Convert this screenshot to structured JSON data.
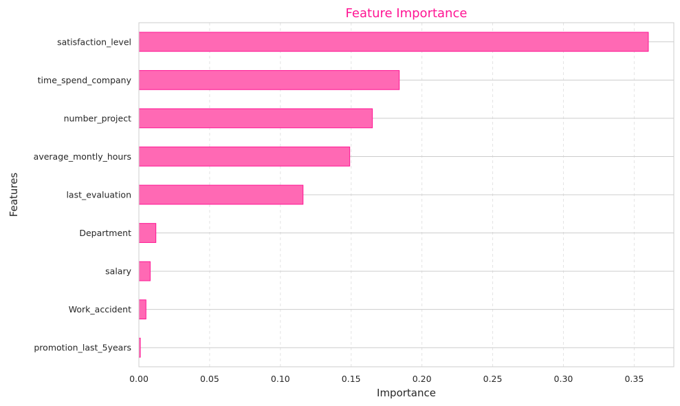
{
  "chart_data": {
    "type": "bar",
    "orientation": "horizontal",
    "title": "Feature Importance",
    "xlabel": "Importance",
    "ylabel": "Features",
    "categories": [
      "satisfaction_level",
      "time_spend_company",
      "number_project",
      "average_montly_hours",
      "last_evaluation",
      "Department",
      "salary",
      "Work_accident",
      "promotion_last_5years"
    ],
    "values": [
      0.36,
      0.184,
      0.165,
      0.149,
      0.116,
      0.012,
      0.008,
      0.005,
      0.001
    ],
    "xlim": [
      0,
      0.378
    ],
    "xticks": [
      0.0,
      0.05,
      0.1,
      0.15,
      0.2,
      0.25,
      0.3,
      0.35
    ],
    "xtick_labels": [
      "0.00",
      "0.05",
      "0.10",
      "0.15",
      "0.20",
      "0.25",
      "0.30",
      "0.35"
    ],
    "grid": true,
    "colors": {
      "bar_fill": "#ff69b4",
      "bar_edge": "#ff1493",
      "title": "#ff1493",
      "grid": "#cccccc",
      "frame": "#cccccc"
    }
  }
}
